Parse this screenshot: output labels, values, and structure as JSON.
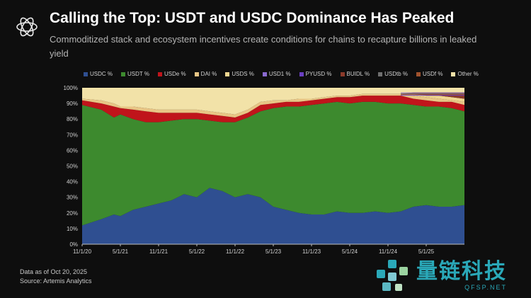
{
  "header": {
    "title": "Calling the Top: USDT and USDC Dominance Has Peaked",
    "subtitle": "Commoditized stack and ecosystem incentives create conditions for chains to recapture billions in leaked yield"
  },
  "footer": {
    "note": "Data as of Oct 20, 2025",
    "source": "Source: Artemis Analytics"
  },
  "watermark": {
    "cn": "量链科技",
    "en": "QFSP.NET"
  },
  "colors": {
    "background": "#0e0e0e",
    "usdc": "#2f4f91",
    "usdt": "#3d8a2e",
    "usde": "#c0141b",
    "dai": "#e8c585",
    "usds": "#f0d690",
    "usd1": "#8a6ad0",
    "pyusd": "#6a3fc2",
    "buidl": "#8b3a2a",
    "usdtb": "#6f6f6f",
    "usdf": "#a0522d",
    "other": "#f2e2a8"
  },
  "chart_data": {
    "type": "area",
    "stacked": true,
    "normalized": true,
    "x_ticks": [
      "11/1/20",
      "5/1/21",
      "11/1/21",
      "5/1/22",
      "11/1/22",
      "5/1/23",
      "11/1/23",
      "5/1/24",
      "11/1/24",
      "5/1/25"
    ],
    "x_range_months": [
      0,
      60
    ],
    "y_ticks": [
      "0%",
      "10%",
      "20%",
      "30%",
      "40%",
      "50%",
      "60%",
      "70%",
      "80%",
      "90%",
      "100%"
    ],
    "ylim": [
      0,
      100
    ],
    "legend": [
      {
        "name": "USDC %",
        "color_key": "usdc"
      },
      {
        "name": "USDT %",
        "color_key": "usdt"
      },
      {
        "name": "USDe %",
        "color_key": "usde"
      },
      {
        "name": "DAI %",
        "color_key": "dai"
      },
      {
        "name": "USDS %",
        "color_key": "usds"
      },
      {
        "name": "USD1 %",
        "color_key": "usd1"
      },
      {
        "name": "PYUSD %",
        "color_key": "pyusd"
      },
      {
        "name": "BUIDL %",
        "color_key": "buidl"
      },
      {
        "name": "USDtb %",
        "color_key": "usdtb"
      },
      {
        "name": "USDf %",
        "color_key": "usdf"
      },
      {
        "name": "Other %",
        "color_key": "other"
      }
    ],
    "series_cumulative_tops": {
      "x_months": [
        0,
        3,
        5,
        6,
        8,
        10,
        12,
        14,
        16,
        18,
        20,
        22,
        24,
        26,
        28,
        30,
        32,
        34,
        36,
        38,
        40,
        42,
        44,
        46,
        48,
        50,
        52,
        54,
        56,
        58,
        60
      ],
      "usdc": [
        12,
        16,
        19,
        18,
        22,
        24,
        26,
        28,
        32,
        30,
        36,
        34,
        30,
        32,
        30,
        24,
        22,
        20,
        19,
        19,
        21,
        20,
        20,
        21,
        20,
        21,
        24,
        25,
        24,
        24,
        25
      ],
      "usdt": [
        89,
        86,
        81,
        83,
        80,
        78,
        78,
        79,
        80,
        80,
        79,
        78,
        78,
        81,
        85,
        87,
        88,
        88,
        89,
        90,
        91,
        90,
        91,
        91,
        90,
        90,
        89,
        88,
        88,
        87,
        85
      ],
      "usde": [
        92,
        90,
        88,
        87,
        86,
        85,
        84,
        84,
        84,
        84,
        83,
        82,
        81,
        84,
        89,
        90,
        91,
        91,
        92,
        93,
        94,
        94,
        95,
        95,
        95,
        95,
        93,
        92,
        91,
        91,
        89
      ],
      "dai": [
        93,
        92,
        90,
        88,
        88,
        87,
        86,
        86,
        86,
        86,
        85,
        84,
        83,
        86,
        91,
        92,
        92,
        93,
        93,
        94,
        95,
        95,
        96,
        96,
        96,
        96,
        95,
        94,
        93,
        92,
        91
      ],
      "usds": [
        93,
        92,
        90,
        88,
        88,
        87,
        86,
        86,
        86,
        86,
        85,
        84,
        83,
        86,
        91,
        92,
        92,
        93,
        93,
        94,
        95,
        95,
        96,
        96,
        96,
        96,
        96,
        95,
        95,
        94,
        93
      ],
      "minor": [
        93,
        92,
        90,
        88,
        88,
        87,
        86,
        86,
        86,
        86,
        85,
        84,
        83,
        86,
        91,
        92,
        92,
        93,
        93,
        94,
        95,
        95,
        96,
        96,
        96,
        96,
        97,
        97,
        97,
        97,
        97
      ],
      "other": [
        100,
        100,
        100,
        100,
        100,
        100,
        100,
        100,
        100,
        100,
        100,
        100,
        100,
        100,
        100,
        100,
        100,
        100,
        100,
        100,
        100,
        100,
        100,
        100,
        100,
        100,
        100,
        100,
        100,
        100,
        100
      ]
    }
  }
}
